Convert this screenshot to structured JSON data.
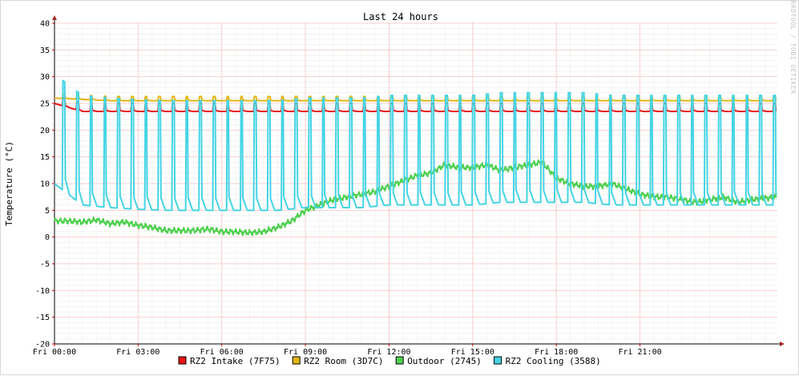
{
  "chart_data": {
    "type": "line",
    "title": "Last 24 hours",
    "ylabel": "Temperature (°C)",
    "watermark": "RRDTOOL / TOBI OETIKER",
    "ylim": [
      -20,
      40
    ],
    "y_ticks": [
      40,
      35,
      30,
      25,
      20,
      15,
      10,
      5,
      0,
      -5,
      -10,
      -15,
      -20
    ],
    "xlim_hours": [
      0,
      25.9
    ],
    "x_ticks": [
      {
        "hour": 0,
        "label": "Fri 00:00"
      },
      {
        "hour": 3,
        "label": "Fri 03:00"
      },
      {
        "hour": 6,
        "label": "Fri 06:00"
      },
      {
        "hour": 9,
        "label": "Fri 09:00"
      },
      {
        "hour": 12,
        "label": "Fri 12:00"
      },
      {
        "hour": 15,
        "label": "Fri 15:00"
      },
      {
        "hour": 18,
        "label": "Fri 18:00"
      },
      {
        "hour": 21,
        "label": "Fri 21:00"
      }
    ],
    "grid": true,
    "legend_position": "bottom",
    "series": [
      {
        "name": "RZ2 Intake (7F75)",
        "color": "#e81414",
        "points": [
          [
            0,
            25
          ],
          [
            1,
            23.5
          ],
          [
            2,
            23.5
          ],
          [
            3,
            23.5
          ],
          [
            4,
            23.5
          ],
          [
            5,
            23.5
          ],
          [
            6,
            23.5
          ],
          [
            7,
            23.5
          ],
          [
            8,
            23.5
          ],
          [
            9,
            23.5
          ],
          [
            10,
            23.5
          ],
          [
            11,
            23.5
          ],
          [
            12,
            23.5
          ],
          [
            13,
            23.5
          ],
          [
            14,
            23.5
          ],
          [
            15,
            23.5
          ],
          [
            16,
            23.5
          ],
          [
            17,
            23.5
          ],
          [
            18,
            23.5
          ],
          [
            19,
            23.5
          ],
          [
            20,
            23.5
          ],
          [
            21,
            23.5
          ],
          [
            22,
            23.5
          ],
          [
            23,
            23.5
          ],
          [
            24,
            23.5
          ],
          [
            25,
            23.5
          ],
          [
            25.9,
            23.5
          ]
        ],
        "cycle": {
          "start": 0.3,
          "period": 0.49,
          "amplitude": 1.5
        }
      },
      {
        "name": "RZ2 Room (3D7C)",
        "color": "#e2b614",
        "points": [
          [
            0,
            26
          ],
          [
            2,
            25.5
          ],
          [
            4,
            25.5
          ],
          [
            6,
            25.5
          ],
          [
            8,
            25.5
          ],
          [
            10,
            25.5
          ],
          [
            12,
            25.5
          ],
          [
            14,
            25.5
          ],
          [
            16,
            25.5
          ],
          [
            18,
            25.5
          ],
          [
            20,
            25.5
          ],
          [
            22,
            25.5
          ],
          [
            24,
            25.5
          ],
          [
            25.9,
            25.5
          ]
        ],
        "cycle": {
          "start": 0.3,
          "period": 0.49,
          "amplitude": 0.8
        }
      },
      {
        "name": "Outdoor (2745)",
        "color": "#4fd04f",
        "points": [
          [
            0,
            3
          ],
          [
            0.5,
            3
          ],
          [
            1,
            2.8
          ],
          [
            1.5,
            3.2
          ],
          [
            2,
            2.5
          ],
          [
            2.5,
            2.8
          ],
          [
            3,
            2.2
          ],
          [
            3.5,
            1.8
          ],
          [
            4,
            1.2
          ],
          [
            4.5,
            1.2
          ],
          [
            5,
            1.2
          ],
          [
            5.5,
            1.5
          ],
          [
            6,
            1
          ],
          [
            6.5,
            1
          ],
          [
            7,
            0.8
          ],
          [
            7.5,
            1
          ],
          [
            8,
            1.8
          ],
          [
            8.5,
            3
          ],
          [
            9,
            5
          ],
          [
            9.5,
            6
          ],
          [
            10,
            7
          ],
          [
            10.5,
            7.5
          ],
          [
            11,
            8
          ],
          [
            11.5,
            8.5
          ],
          [
            12,
            9.5
          ],
          [
            12.5,
            10.5
          ],
          [
            13,
            11.5
          ],
          [
            13.5,
            12
          ],
          [
            14,
            13.5
          ],
          [
            14.5,
            13
          ],
          [
            15,
            13
          ],
          [
            15.5,
            13.5
          ],
          [
            16,
            12.5
          ],
          [
            16.5,
            13
          ],
          [
            17,
            13.5
          ],
          [
            17.5,
            14
          ],
          [
            18,
            11
          ],
          [
            18.5,
            10
          ],
          [
            19,
            9.5
          ],
          [
            19.5,
            9.5
          ],
          [
            20,
            10
          ],
          [
            20.5,
            9
          ],
          [
            21,
            8
          ],
          [
            21.5,
            7.5
          ],
          [
            22,
            7.5
          ],
          [
            22.5,
            7
          ],
          [
            23,
            6.5
          ],
          [
            23.5,
            7
          ],
          [
            24,
            7.5
          ],
          [
            24.5,
            6.5
          ],
          [
            25,
            7
          ],
          [
            25.9,
            7.5
          ]
        ],
        "cycle": null
      },
      {
        "name": "RZ2 Cooling (3588)",
        "color": "#44d4e4",
        "points": [
          [
            0,
            10
          ],
          [
            1,
            6
          ],
          [
            2,
            5.5
          ],
          [
            3,
            5.2
          ],
          [
            4,
            5
          ],
          [
            5,
            5
          ],
          [
            6,
            5
          ],
          [
            7,
            5
          ],
          [
            8,
            5
          ],
          [
            9,
            5.5
          ],
          [
            10,
            5.5
          ],
          [
            11,
            5.5
          ],
          [
            12,
            6
          ],
          [
            13,
            6
          ],
          [
            14,
            6
          ],
          [
            15,
            6
          ],
          [
            16,
            6.5
          ],
          [
            17,
            6.5
          ],
          [
            18,
            6.5
          ],
          [
            19,
            6.5
          ],
          [
            20,
            6
          ],
          [
            21,
            6
          ],
          [
            22,
            6
          ],
          [
            23,
            6
          ],
          [
            24,
            6
          ],
          [
            25,
            6
          ],
          [
            25.9,
            6
          ]
        ],
        "cycle": {
          "start": 0.3,
          "period": 0.49,
          "amplitude": 20.5
        }
      }
    ]
  }
}
